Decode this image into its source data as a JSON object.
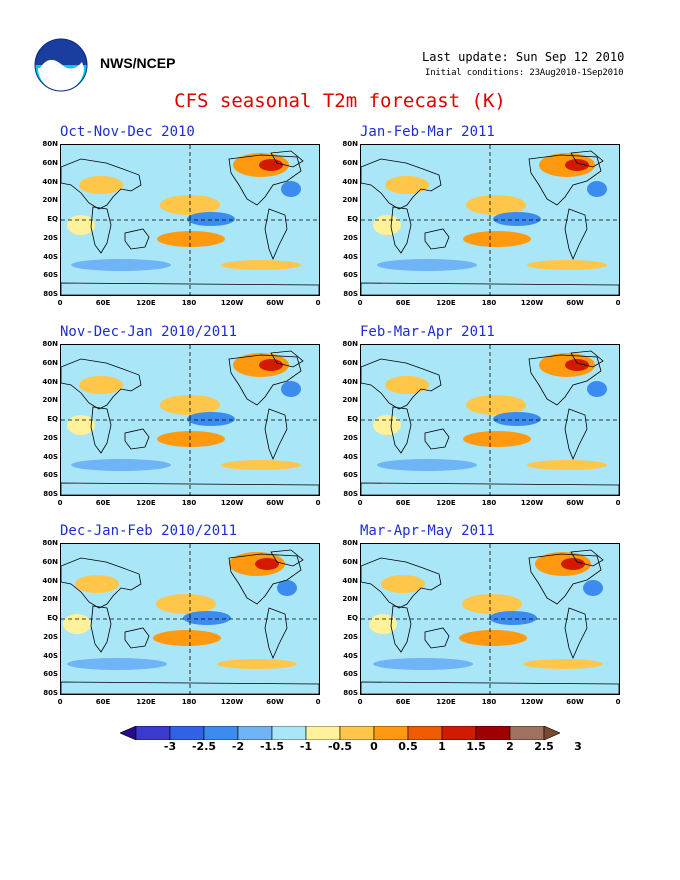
{
  "header": {
    "agency": "NWS/NCEP",
    "last_update": "Last update: Sun Sep 12 2010",
    "initial_conditions": "Initial conditions: 23Aug2010-1Sep2010",
    "title": "CFS seasonal T2m forecast (K)",
    "logo_icon": "noaa-logo-icon"
  },
  "axes": {
    "lat_ticks": [
      "80N",
      "60N",
      "40N",
      "20N",
      "EQ",
      "20S",
      "40S",
      "60S",
      "80S"
    ],
    "lon_ticks": [
      "0",
      "60E",
      "120E",
      "180",
      "120W",
      "60W",
      "0"
    ]
  },
  "panels": [
    {
      "title": "Oct-Nov-Dec 2010"
    },
    {
      "title": "Jan-Feb-Mar 2011"
    },
    {
      "title": "Nov-Dec-Jan 2010/2011"
    },
    {
      "title": "Feb-Mar-Apr 2011"
    },
    {
      "title": "Dec-Jan-Feb 2010/2011"
    },
    {
      "title": "Mar-Apr-May 2011"
    }
  ],
  "colorbar": {
    "labels": [
      "-3",
      "-2.5",
      "-2",
      "-1.5",
      "-1",
      "-0.5",
      "0",
      "0.5",
      "1",
      "1.5",
      "2",
      "2.5",
      "3"
    ],
    "colors": [
      "#2a0a8c",
      "#3a3ad0",
      "#2f62e6",
      "#3c8cf0",
      "#6fb4f6",
      "#a8e6f8",
      "#fff19a",
      "#ffc64a",
      "#ff9a10",
      "#f05a00",
      "#d21a00",
      "#a00000",
      "#a07060",
      "#7a4a30"
    ]
  }
}
